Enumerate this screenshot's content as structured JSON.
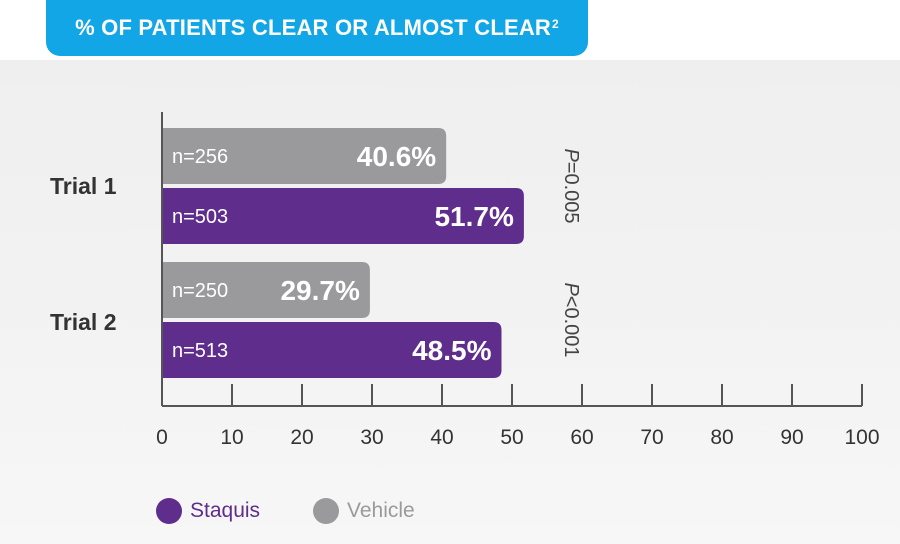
{
  "title": {
    "text": "% OF PATIENTS CLEAR OR ALMOST CLEAR",
    "superscript": "2"
  },
  "colors": {
    "staquis": "#5f2d8c",
    "vehicle": "#9a9a9c",
    "title_bg": "#12a6e6",
    "axis": "#555555"
  },
  "legend": [
    {
      "label": "Staquis",
      "color": "#5f2d8c"
    },
    {
      "label": "Vehicle",
      "color": "#9a9a9c"
    }
  ],
  "chart_data": {
    "type": "bar",
    "orientation": "horizontal",
    "title": "% OF PATIENTS CLEAR OR ALMOST CLEAR",
    "categories": [
      "Trial 1",
      "Trial 2"
    ],
    "series": [
      {
        "name": "Vehicle",
        "values": [
          40.6,
          29.7
        ],
        "value_labels": [
          "40.6%",
          "29.7%"
        ],
        "n_labels": [
          "n=256",
          "n=250"
        ]
      },
      {
        "name": "Staquis",
        "values": [
          51.7,
          48.5
        ],
        "value_labels": [
          "51.7%",
          "48.5%"
        ],
        "n_labels": [
          "n=503",
          "n=513"
        ]
      }
    ],
    "p_values": [
      "P=0.005",
      "P<0.001"
    ],
    "xlim": [
      0,
      100
    ],
    "xticks": [
      0,
      10,
      20,
      30,
      40,
      50,
      60,
      70,
      80,
      90,
      100
    ],
    "grid": false,
    "legend_position": "bottom-left"
  }
}
